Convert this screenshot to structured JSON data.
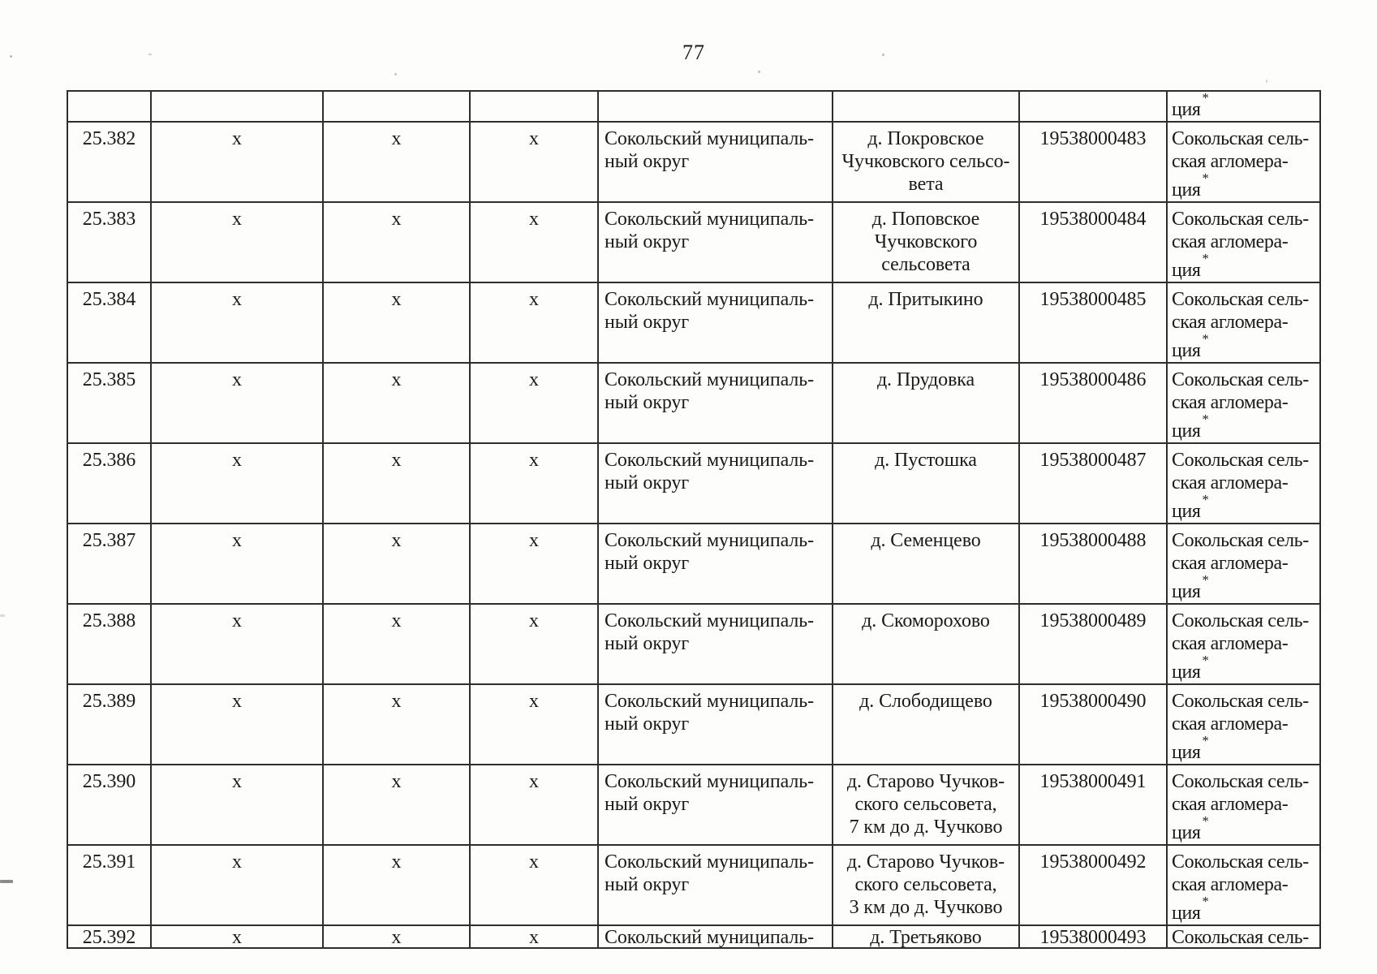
{
  "page": {
    "number": "77"
  },
  "table": {
    "column_names": [
      "row-number",
      "mark-1",
      "mark-2",
      "mark-3",
      "municipality",
      "settlement",
      "code",
      "agglomeration"
    ],
    "carryover_row": {
      "agglomeration_lines": [
        "ция*"
      ]
    },
    "rows": [
      {
        "num": "25.382",
        "marks": [
          "х",
          "х",
          "х"
        ],
        "municipality_lines": [
          "Сокольский муниципаль-",
          "ный округ"
        ],
        "settlement_lines": [
          "д. Покровское",
          "Чучковского сельсо-",
          "вета"
        ],
        "code": "19538000483",
        "agglomeration_lines": [
          "Сокольская сель-",
          "ская агломера-",
          "ция*"
        ]
      },
      {
        "num": "25.383",
        "marks": [
          "х",
          "х",
          "х"
        ],
        "municipality_lines": [
          "Сокольский муниципаль-",
          "ный округ"
        ],
        "settlement_lines": [
          "д. Поповское",
          "Чучковского",
          "сельсовета"
        ],
        "code": "19538000484",
        "agglomeration_lines": [
          "Сокольская сель-",
          "ская агломера-",
          "ция*"
        ]
      },
      {
        "num": "25.384",
        "marks": [
          "х",
          "х",
          "х"
        ],
        "municipality_lines": [
          "Сокольский муниципаль-",
          "ный округ"
        ],
        "settlement_lines": [
          "д. Притыкино"
        ],
        "code": "19538000485",
        "agglomeration_lines": [
          "Сокольская сель-",
          "ская агломера-",
          "ция*"
        ]
      },
      {
        "num": "25.385",
        "marks": [
          "х",
          "х",
          "х"
        ],
        "municipality_lines": [
          "Сокольский муниципаль-",
          "ный округ"
        ],
        "settlement_lines": [
          "д. Прудовка"
        ],
        "code": "19538000486",
        "agglomeration_lines": [
          "Сокольская сель-",
          "ская агломера-",
          "ция*"
        ]
      },
      {
        "num": "25.386",
        "marks": [
          "х",
          "х",
          "х"
        ],
        "municipality_lines": [
          "Сокольский муниципаль-",
          "ный округ"
        ],
        "settlement_lines": [
          "д. Пустошка"
        ],
        "code": "19538000487",
        "agglomeration_lines": [
          "Сокольская сель-",
          "ская агломера-",
          "ция*"
        ]
      },
      {
        "num": "25.387",
        "marks": [
          "х",
          "х",
          "х"
        ],
        "municipality_lines": [
          "Сокольский муниципаль-",
          "ный округ"
        ],
        "settlement_lines": [
          "д. Семенцево"
        ],
        "code": "19538000488",
        "agglomeration_lines": [
          "Сокольская сель-",
          "ская агломера-",
          "ция*"
        ]
      },
      {
        "num": "25.388",
        "marks": [
          "х",
          "х",
          "х"
        ],
        "municipality_lines": [
          "Сокольский муниципаль-",
          "ный округ"
        ],
        "settlement_lines": [
          "д. Скоморохово"
        ],
        "code": "19538000489",
        "agglomeration_lines": [
          "Сокольская сель-",
          "ская агломера-",
          "ция*"
        ]
      },
      {
        "num": "25.389",
        "marks": [
          "х",
          "х",
          "х"
        ],
        "municipality_lines": [
          "Сокольский муниципаль-",
          "ный округ"
        ],
        "settlement_lines": [
          "д. Слободищево"
        ],
        "code": "19538000490",
        "agglomeration_lines": [
          "Сокольская сель-",
          "ская агломера-",
          "ция*"
        ]
      },
      {
        "num": "25.390",
        "marks": [
          "х",
          "х",
          "х"
        ],
        "municipality_lines": [
          "Сокольский муниципаль-",
          "ный округ"
        ],
        "settlement_lines": [
          "д. Старово Чучков-",
          "ского сельсовета,",
          "7 км до д. Чучково"
        ],
        "code": "19538000491",
        "agglomeration_lines": [
          "Сокольская сель-",
          "ская агломера-",
          "ция*"
        ]
      },
      {
        "num": "25.391",
        "marks": [
          "х",
          "х",
          "х"
        ],
        "municipality_lines": [
          "Сокольский муниципаль-",
          "ный округ"
        ],
        "settlement_lines": [
          "д. Старово Чучков-",
          "ского сельсовета,",
          "3 км до д. Чучково"
        ],
        "code": "19538000492",
        "agglomeration_lines": [
          "Сокольская сель-",
          "ская агломера-",
          "ция*"
        ]
      },
      {
        "num": "25.392",
        "marks": [
          "х",
          "х",
          "х"
        ],
        "municipality_lines": [
          "Сокольский муниципаль-"
        ],
        "settlement_lines": [
          "д. Третьяково"
        ],
        "code": "19538000493",
        "agglomeration_lines": [
          "Сокольская сель-"
        ],
        "partial": true
      }
    ]
  }
}
